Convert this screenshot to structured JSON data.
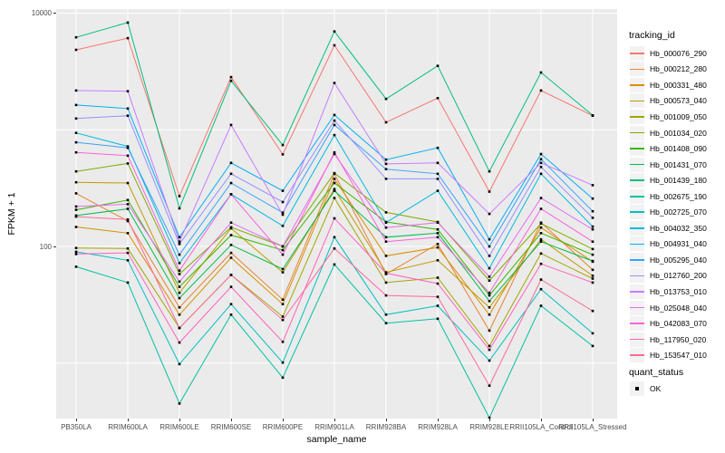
{
  "figure": {
    "background": "#FFFFFF",
    "panel_background": "#EBEBEB",
    "grid_color": "#FFFFFF",
    "point_color": "#000000",
    "axis_text_color": "#4D4D4D"
  },
  "axes": {
    "x_title": "sample_name",
    "y_title": "FPKM + 1",
    "y_tick_labels": [
      "10000",
      "100"
    ],
    "y_tick_values": [
      10000,
      100
    ],
    "y_gridline_values": [
      10,
      100,
      1000,
      10000
    ]
  },
  "legend": {
    "tracking_title": "tracking_id",
    "quant_title": "quant_status",
    "quant_ok_label": "OK"
  },
  "chart_data": {
    "type": "line",
    "x_axis_label": "sample_name",
    "y_axis_label": "FPKM + 1",
    "y_scale": "log10",
    "ylim": [
      3,
      11000
    ],
    "grid": true,
    "legend_position": "right",
    "x": [
      "PB350LA",
      "RRIM600LA",
      "RRIM600LE",
      "RRIM600SE",
      "RRIM600PE",
      "RRIM901LA",
      "RRIM928BA",
      "RRIM928LA",
      "RRIM928LE",
      "RRII105LA_Control",
      "RRII105LA_Stressed"
    ],
    "series": [
      {
        "name": "Hb_000076_290",
        "color": "#F8766D",
        "values": [
          4850,
          6100,
          270,
          2830,
          615,
          5300,
          1160,
          1870,
          295,
          2170,
          1320
        ]
      },
      {
        "name": "Hb_000212_280",
        "color": "#EA8331",
        "values": [
          285,
          165,
          30,
          88,
          35,
          420,
          58,
          105,
          19,
          160,
          63
        ]
      },
      {
        "name": "Hb_000331_480",
        "color": "#D89000",
        "values": [
          147,
          130,
          26,
          80,
          32,
          380,
          83,
          98,
          26,
          145,
          74
        ]
      },
      {
        "name": "Hb_000573_040",
        "color": "#C09B00",
        "values": [
          355,
          350,
          40,
          143,
          60,
          310,
          60,
          76,
          30,
          115,
          56
        ]
      },
      {
        "name": "Hb_001009_050",
        "color": "#A3A500",
        "values": [
          97,
          96,
          20,
          57,
          25,
          260,
          49,
          54,
          14,
          87,
          53
        ]
      },
      {
        "name": "Hb_001034_020",
        "color": "#7CAE00",
        "values": [
          440,
          515,
          58,
          146,
          100,
          425,
          196,
          162,
          51,
          157,
          95
        ]
      },
      {
        "name": "Hb_001408_090",
        "color": "#39B600",
        "values": [
          206,
          250,
          45,
          125,
          93,
          350,
          162,
          140,
          38,
          130,
          85
        ]
      },
      {
        "name": "Hb_001431_070",
        "color": "#00BB4E",
        "values": [
          184,
          210,
          36,
          103,
          64,
          300,
          120,
          130,
          34,
          110,
          75
        ]
      },
      {
        "name": "Hb_001439_180",
        "color": "#00BF7D",
        "values": [
          6200,
          8300,
          212,
          2630,
          740,
          6970,
          1840,
          3530,
          440,
          3100,
          1330
        ]
      },
      {
        "name": "Hb_002675_190",
        "color": "#00C1A3",
        "values": [
          67,
          49,
          4.5,
          26,
          7.5,
          70,
          22,
          24,
          3.4,
          31,
          14
        ]
      },
      {
        "name": "Hb_002725_070",
        "color": "#00BFC4",
        "values": [
          90,
          76,
          9.8,
          32,
          10.1,
          120,
          26,
          31,
          10.5,
          43,
          18
        ]
      },
      {
        "name": "Hb_004032_350",
        "color": "#00BAE0",
        "values": [
          940,
          720,
          72,
          280,
          150,
          900,
          160,
          300,
          65,
          420,
          148
        ]
      },
      {
        "name": "Hb_004931_040",
        "color": "#00B0F6",
        "values": [
          1630,
          1520,
          120,
          520,
          300,
          1340,
          555,
          700,
          115,
          620,
          257
        ]
      },
      {
        "name": "Hb_005295_040",
        "color": "#35A2FF",
        "values": [
          780,
          700,
          85,
          350,
          195,
          1100,
          460,
          420,
          100,
          560,
          200
        ]
      },
      {
        "name": "Hb_012760_200",
        "color": "#9590FF",
        "values": [
          1250,
          1320,
          105,
          420,
          240,
          1200,
          380,
          380,
          83,
          480,
          176
        ]
      },
      {
        "name": "Hb_013753_010",
        "color": "#C77CFF",
        "values": [
          2170,
          2140,
          110,
          1100,
          187,
          2520,
          510,
          520,
          190,
          520,
          335
        ]
      },
      {
        "name": "Hb_025048_040",
        "color": "#E76BF3",
        "values": [
          220,
          230,
          50,
          160,
          100,
          620,
          145,
          160,
          55,
          260,
          140
        ]
      },
      {
        "name": "Hb_042083_070",
        "color": "#FA62DB",
        "values": [
          640,
          600,
          62,
          280,
          85,
          640,
          110,
          120,
          40,
          210,
          110
        ]
      },
      {
        "name": "Hb_117950_020",
        "color": "#FF62BC",
        "values": [
          86,
          88,
          15,
          45,
          15.2,
          174,
          59,
          48,
          13,
          71,
          49
        ]
      },
      {
        "name": "Hb_153547_010",
        "color": "#FF6A98",
        "values": [
          180,
          170,
          20,
          57,
          23.4,
          96,
          38,
          37,
          6.4,
          52,
          28
        ]
      }
    ]
  }
}
